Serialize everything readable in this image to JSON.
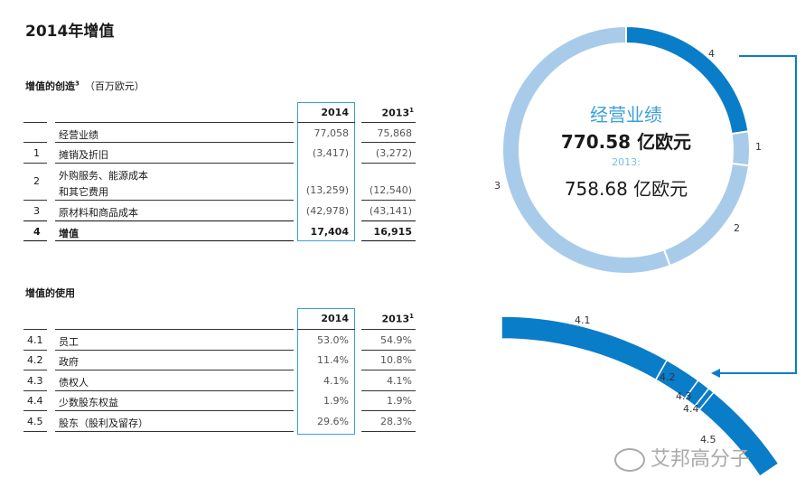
{
  "page_title": "2014年增值",
  "creation": {
    "title": "增值的创造",
    "title_sup": "3",
    "unit": "（百万欧元）",
    "col_2014": "2014",
    "col_2013": "2013",
    "col_2013_sup": "1",
    "rows": [
      {
        "num": "",
        "label": "经营业绩",
        "label2": "",
        "v2014": "77,058",
        "v2013": "75,868"
      },
      {
        "num": "1",
        "label": "摊销及折旧",
        "label2": "",
        "v2014": "(3,417)",
        "v2013": "(3,272)"
      },
      {
        "num": "2",
        "label": "外购服务、能源成本",
        "label2": "和其它费用",
        "v2014": "(13,259)",
        "v2013": "(12,540)"
      },
      {
        "num": "3",
        "label": "原材料和商品成本",
        "label2": "",
        "v2014": "(42,978)",
        "v2013": "(43,141)"
      },
      {
        "num": "4",
        "label": "增值",
        "label2": "",
        "v2014": "17,404",
        "v2013": "16,915"
      }
    ]
  },
  "usage": {
    "title": "增值的使用",
    "col_2014": "2014",
    "col_2013": "2013",
    "col_2013_sup": "1",
    "rows": [
      {
        "num": "4.1",
        "label": "员工",
        "v2014": "53.0%",
        "v2013": "54.9%"
      },
      {
        "num": "4.2",
        "label": "政府",
        "v2014": "11.4%",
        "v2013": "10.8%"
      },
      {
        "num": "4.3",
        "label": "债权人",
        "v2014": "4.1%",
        "v2013": "4.1%"
      },
      {
        "num": "4.4",
        "label": "少数股东权益",
        "v2014": "1.9%",
        "v2013": "1.9%"
      },
      {
        "num": "4.5",
        "label": "股东（股利及留存）",
        "v2014": "29.6%",
        "v2013": "28.3%"
      }
    ]
  },
  "donut": {
    "heading": "经营业绩",
    "value_2014": "770.58 亿欧元",
    "label_2013": "2013:",
    "value_2013": "758.68 亿欧元",
    "segment_labels": {
      "s4": "4",
      "s1": "1",
      "s2": "2",
      "s3": "3"
    },
    "shares": {
      "s4": 17404,
      "s1": 3417,
      "s2": 13259,
      "s3": 42978
    },
    "colors": {
      "dark": "#0a7dc9",
      "light": "#a8cbea",
      "heading": "#3aa0d8",
      "sub": "#7bbde3"
    }
  },
  "arc": {
    "labels": [
      "4.1",
      "4.2",
      "4.3",
      "4.4",
      "4.5"
    ],
    "shares": [
      53.0,
      11.4,
      4.1,
      1.9,
      29.6
    ]
  },
  "watermark": "艾邦高分子"
}
